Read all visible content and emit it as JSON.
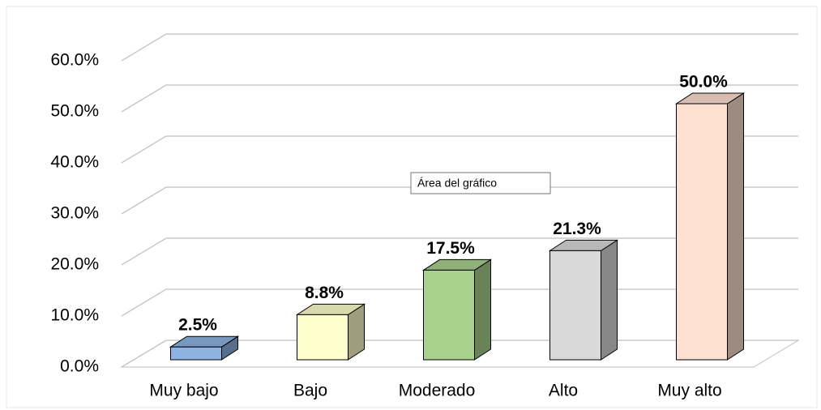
{
  "chart_data": {
    "type": "bar3d",
    "categories": [
      "Muy bajo",
      "Bajo",
      "Moderado",
      "Alto",
      "Muy alto"
    ],
    "values": [
      2.5,
      8.8,
      17.5,
      21.3,
      50.0
    ],
    "value_labels": [
      "2.5%",
      "8.8%",
      "17.5%",
      "21.3%",
      "50.0%"
    ],
    "colors": [
      "#8db3e2",
      "#ffffcc",
      "#a9d18e",
      "#d9d9d9",
      "#fde0d0"
    ],
    "ylim": [
      0,
      60
    ],
    "yticks": [
      {
        "value": 0,
        "label": "0.0%"
      },
      {
        "value": 10,
        "label": "10.0%"
      },
      {
        "value": 20,
        "label": "20.0%"
      },
      {
        "value": 30,
        "label": "30.0%"
      },
      {
        "value": 40,
        "label": "40.0%"
      },
      {
        "value": 50,
        "label": "50.0%"
      },
      {
        "value": 60,
        "label": "60.0%"
      }
    ],
    "grid": true,
    "annotations": [
      "Área del gráfico"
    ]
  }
}
